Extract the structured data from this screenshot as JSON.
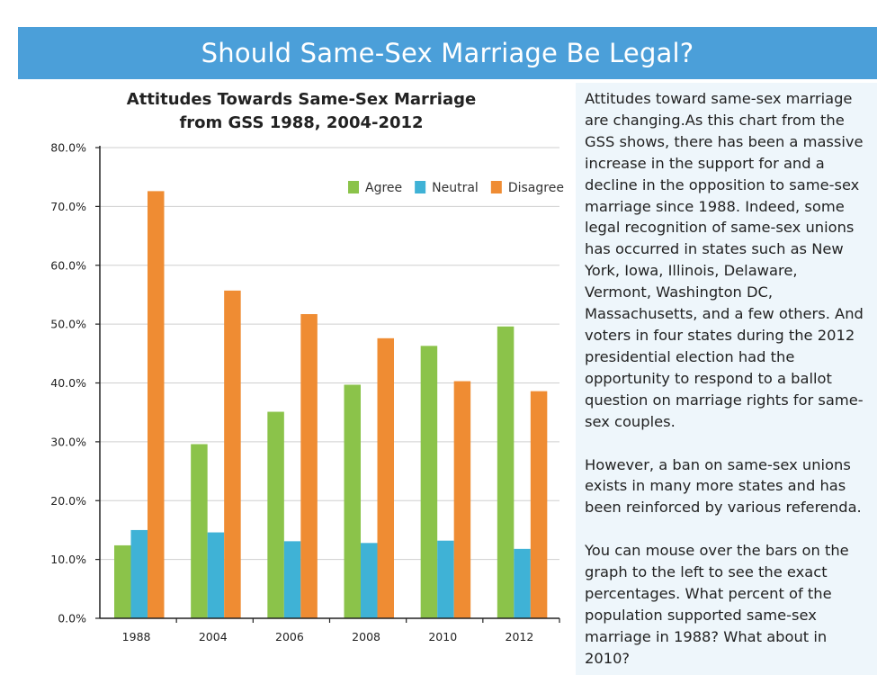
{
  "page": {
    "banner_title": "Should Same-Sex Marriage Be Legal?"
  },
  "colors": {
    "banner": "#4b9fd9",
    "agree": "#8bc34a",
    "neutral": "#3fb2d6",
    "disagree": "#ef8c33",
    "panel": "#eef6fb"
  },
  "chart_data": {
    "type": "bar",
    "title_line1": "Attitudes Towards Same-Sex Marriage",
    "title_line2": "from GSS 1988, 2004-2012",
    "categories": [
      "1988",
      "2004",
      "2006",
      "2008",
      "2010",
      "2012"
    ],
    "series": [
      {
        "name": "Agree",
        "values": [
          12.4,
          29.6,
          35.1,
          39.7,
          46.3,
          49.6
        ]
      },
      {
        "name": "Neutral",
        "values": [
          15.0,
          14.6,
          13.1,
          12.8,
          13.2,
          11.8
        ]
      },
      {
        "name": "Disagree",
        "values": [
          72.6,
          55.7,
          51.7,
          47.6,
          40.3,
          38.6
        ]
      }
    ],
    "y_ticks": [
      "0.0%",
      "10.0%",
      "20.0%",
      "30.0%",
      "40.0%",
      "50.0%",
      "60.0%",
      "70.0%",
      "80.0%"
    ],
    "ylim": [
      0,
      80
    ],
    "grid": true,
    "legend_position": "top-right"
  },
  "panel": {
    "paragraph1": "Attitudes toward same-sex marriage are changing.As this chart from the GSS shows, there has been a massive increase in the support for and a decline in the opposition to same-sex marriage since 1988.  Indeed, some legal recognition of same-sex unions has occurred in states such as New York, Iowa, Illinois, Delaware, Vermont, Washington DC, Massachusetts, and a few others. And voters in four states during the 2012 presidential election had the opportunity to respond to a ballot question on marriage rights for same-sex couples.",
    "paragraph2": "However, a ban on same-sex unions exists in many more states and has been reinforced by various referenda.",
    "paragraph3": "You can mouse over the bars on the graph to the left to see the exact percentages.  What percent of the population supported same-sex marriage in 1988? What about in 2010?"
  }
}
